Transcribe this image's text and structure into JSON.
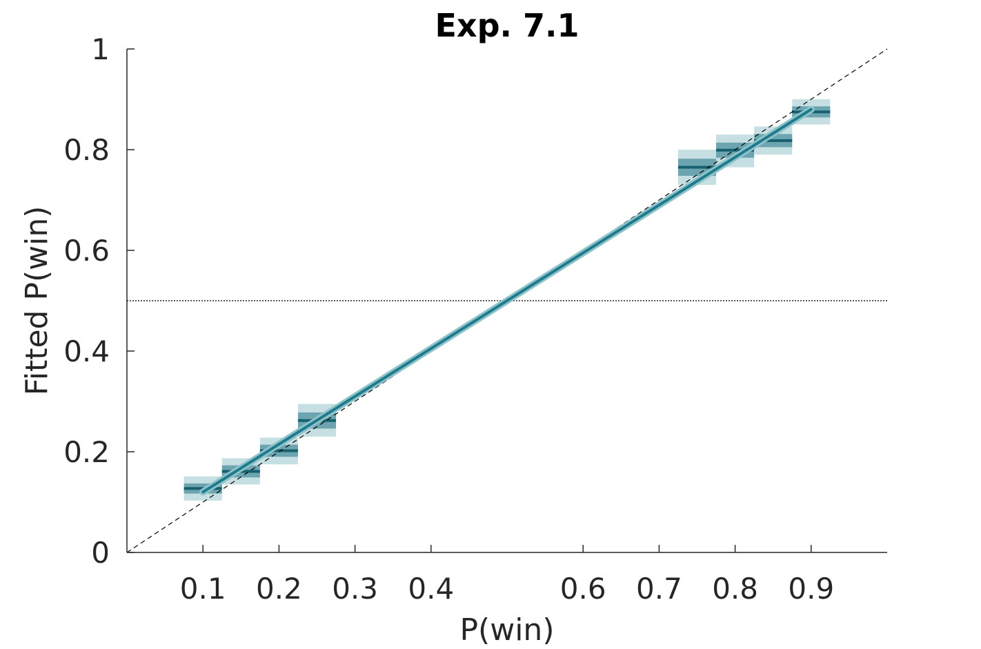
{
  "chart_data": {
    "type": "line",
    "title": "Exp. 7.1",
    "xlabel": "P(win)",
    "ylabel": "Fitted P(win)",
    "xlim": [
      0,
      1
    ],
    "ylim": [
      0,
      1
    ],
    "xticks": [
      0.1,
      0.2,
      0.3,
      0.4,
      0.6,
      0.7,
      0.8,
      0.9
    ],
    "xtick_labels": [
      "0.1",
      "0.2",
      "0.3",
      "0.4",
      "0.6",
      "0.7",
      "0.8",
      "0.9"
    ],
    "yticks": [
      0,
      0.2,
      0.4,
      0.6,
      0.8,
      1
    ],
    "ytick_labels": [
      "0",
      "0.2",
      "0.4",
      "0.6",
      "0.8",
      "1"
    ],
    "grid": false,
    "reference_lines": [
      {
        "kind": "identity",
        "style": "dashed",
        "color": "#000000"
      },
      {
        "kind": "horizontal",
        "y": 0.5,
        "style": "dotted",
        "color": "#555555"
      }
    ],
    "fit_line": {
      "x": [
        0.1,
        0.9
      ],
      "y": [
        0.12,
        0.88
      ],
      "color": "#1f7a8c"
    },
    "bins": [
      {
        "x0": 0.075,
        "x1": 0.125,
        "mean": 0.127,
        "inner": [
          0.117,
          0.137
        ],
        "outer": [
          0.103,
          0.151
        ]
      },
      {
        "x0": 0.125,
        "x1": 0.175,
        "mean": 0.161,
        "inner": [
          0.149,
          0.173
        ],
        "outer": [
          0.135,
          0.187
        ]
      },
      {
        "x0": 0.175,
        "x1": 0.225,
        "mean": 0.202,
        "inner": [
          0.19,
          0.214
        ],
        "outer": [
          0.175,
          0.228
        ]
      },
      {
        "x0": 0.225,
        "x1": 0.275,
        "mean": 0.262,
        "inner": [
          0.246,
          0.278
        ],
        "outer": [
          0.23,
          0.295
        ]
      },
      {
        "x0": 0.725,
        "x1": 0.775,
        "mean": 0.765,
        "inner": [
          0.748,
          0.782
        ],
        "outer": [
          0.73,
          0.8
        ]
      },
      {
        "x0": 0.775,
        "x1": 0.825,
        "mean": 0.799,
        "inner": [
          0.784,
          0.814
        ],
        "outer": [
          0.765,
          0.83
        ]
      },
      {
        "x0": 0.825,
        "x1": 0.875,
        "mean": 0.818,
        "inner": [
          0.805,
          0.831
        ],
        "outer": [
          0.79,
          0.846
        ]
      },
      {
        "x0": 0.875,
        "x1": 0.925,
        "mean": 0.875,
        "inner": [
          0.864,
          0.886
        ],
        "outer": [
          0.85,
          0.9
        ]
      }
    ],
    "colors": {
      "outer_band": "#c6dfe3",
      "inner_band": "#5c9aa6",
      "mean_line": "#16606f",
      "fit": "#1f7a8c",
      "fit_halo": "#8fc3cb",
      "axis": "#262626"
    }
  }
}
